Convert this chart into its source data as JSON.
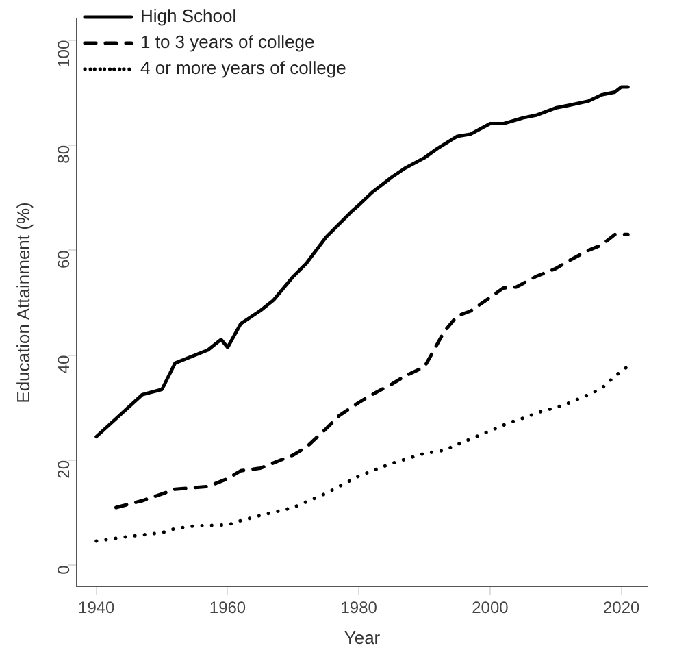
{
  "chart_data": {
    "type": "line",
    "xlabel": "Year",
    "ylabel": "Education Attainment (%)",
    "xlim": [
      1937,
      2024
    ],
    "ylim": [
      -4,
      104
    ],
    "xticks": [
      1940,
      1960,
      1980,
      2000,
      2020
    ],
    "yticks": [
      0,
      20,
      40,
      60,
      80,
      100
    ],
    "legend": "top left",
    "series": [
      {
        "name": "High School",
        "color": "#000000",
        "line_style": "solid",
        "x": [
          1940,
          1947,
          1950,
          1952,
          1957,
          1959,
          1960,
          1962,
          1965,
          1967,
          1970,
          1972,
          1975,
          1977,
          1979,
          1980,
          1982,
          1985,
          1987,
          1990,
          1992,
          1995,
          1997,
          2000,
          2002,
          2005,
          2007,
          2010,
          2012,
          2015,
          2017,
          2019,
          2020,
          2021
        ],
        "values": [
          24.5,
          32.5,
          33.5,
          38.5,
          41,
          43,
          41.5,
          46,
          48.5,
          50.5,
          55,
          57.5,
          62.5,
          65,
          67.5,
          68.6,
          71,
          73.9,
          75.6,
          77.6,
          79.4,
          81.7,
          82.1,
          84.1,
          84.1,
          85.2,
          85.7,
          87.1,
          87.6,
          88.4,
          89.6,
          90.1,
          91.1,
          91.1
        ]
      },
      {
        "name": "1 to 3 years of college",
        "color": "#000000",
        "line_style": "dashed",
        "x": [
          1943,
          1947,
          1950,
          1952,
          1957,
          1960,
          1962,
          1965,
          1967,
          1970,
          1972,
          1975,
          1977,
          1980,
          1982,
          1985,
          1987,
          1990,
          1991,
          1993,
          1995,
          1997,
          2000,
          2002,
          2004,
          2007,
          2010,
          2012,
          2015,
          2017,
          2019,
          2021
        ],
        "values": [
          11,
          12.3,
          13.6,
          14.5,
          15,
          16.5,
          18,
          18.5,
          19.5,
          21,
          22.5,
          26,
          28.5,
          31,
          32.5,
          34.5,
          36,
          37.8,
          40,
          44.5,
          47.5,
          48.4,
          51,
          52.8,
          53,
          55,
          56.5,
          58,
          60,
          61,
          63,
          63
        ]
      },
      {
        "name": "4 or more years of college",
        "color": "#000000",
        "line_style": "dotted",
        "x": [
          1940,
          1945,
          1950,
          1952,
          1955,
          1960,
          1962,
          1965,
          1970,
          1975,
          1980,
          1985,
          1990,
          1993,
          1995,
          2000,
          2003,
          2005,
          2008,
          2010,
          2012,
          2015,
          2017,
          2019,
          2021
        ],
        "values": [
          4.6,
          5.5,
          6.2,
          7,
          7.5,
          7.7,
          8.5,
          9.5,
          11,
          13.7,
          17,
          19.4,
          21.3,
          21.9,
          23,
          25.6,
          27.2,
          28,
          29.4,
          30,
          30.9,
          32.5,
          33.7,
          36,
          37.9
        ]
      }
    ]
  }
}
